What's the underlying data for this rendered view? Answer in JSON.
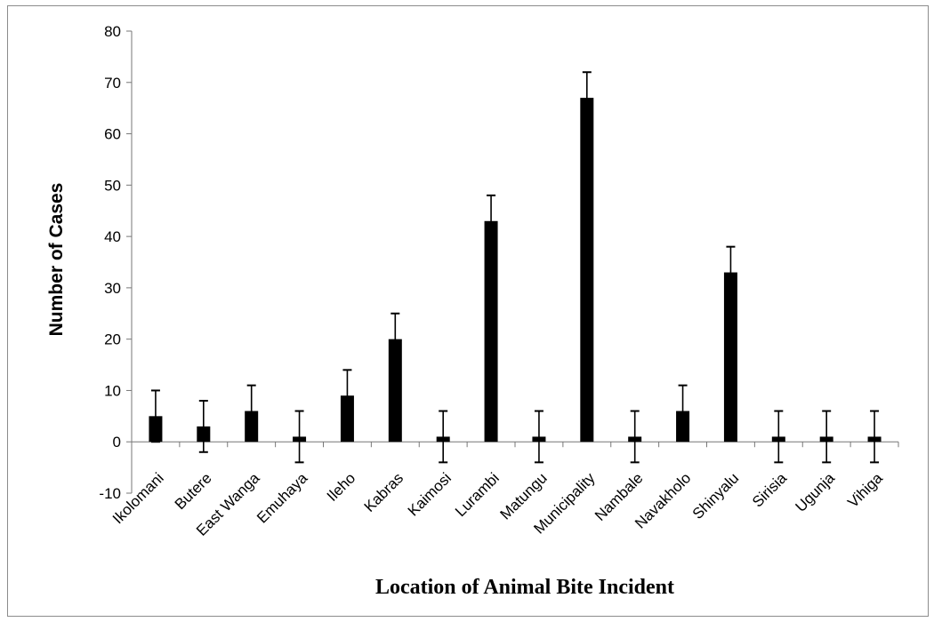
{
  "chart_data": {
    "type": "bar",
    "title": "",
    "xlabel": "Location of Animal Bite Incident",
    "ylabel": "Number of Cases",
    "ylim": [
      -10,
      80
    ],
    "yticks": [
      -10,
      0,
      10,
      20,
      30,
      40,
      50,
      60,
      70,
      80
    ],
    "grid": false,
    "legend": "none",
    "bar_color": "#000000",
    "error_bars": "plus-minus 5",
    "categories": [
      "Ikolomani",
      "Butere",
      "East Wanga",
      "Emuhaya",
      "Ileho",
      "Kabras",
      "Kaimosi",
      "Lurambi",
      "Matungu",
      "Municipality",
      "Nambale",
      "Navakholo",
      "Shinyalu",
      "Sirisia",
      "Ugunja",
      "Vihiga"
    ],
    "values": [
      5,
      3,
      6,
      1,
      9,
      20,
      1,
      43,
      1,
      67,
      1,
      6,
      33,
      1,
      1,
      1
    ],
    "error": [
      5,
      5,
      5,
      5,
      5,
      5,
      5,
      5,
      5,
      5,
      5,
      5,
      5,
      5,
      5,
      5
    ]
  }
}
